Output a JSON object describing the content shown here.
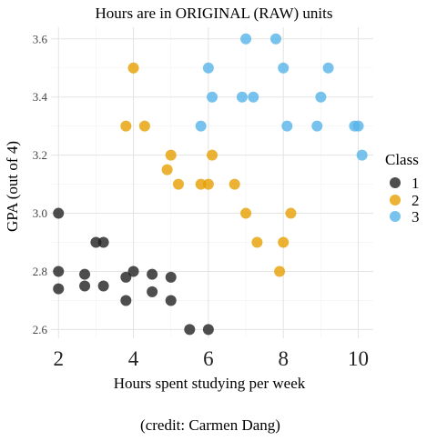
{
  "chart_data": {
    "type": "scatter",
    "title": "Hours are in ORIGINAL (RAW) units",
    "xlabel": "Hours spent studying per week",
    "ylabel": "GPA (out of 4)",
    "caption": "(credit: Carmen Dang)",
    "xlim": [
      1.8,
      10.4
    ],
    "ylim": [
      2.57,
      3.64
    ],
    "x_ticks": [
      2,
      4,
      6,
      8,
      10
    ],
    "y_ticks": [
      2.6,
      2.8,
      3.0,
      3.2,
      3.4,
      3.6
    ],
    "x_tick_labels": [
      "2",
      "4",
      "6",
      "8",
      "10"
    ],
    "y_tick_labels": [
      "2.6",
      "2.8",
      "3.0",
      "3.2",
      "3.4",
      "3.6"
    ],
    "grid": true,
    "legend": {
      "title": "Class",
      "placement": "right",
      "entries": [
        "1",
        "2",
        "3"
      ]
    },
    "series": [
      {
        "name": "1",
        "color": "#222222",
        "points": [
          {
            "x": 2.0,
            "y": 3.0
          },
          {
            "x": 2.0,
            "y": 2.8
          },
          {
            "x": 2.0,
            "y": 2.74
          },
          {
            "x": 2.7,
            "y": 2.79
          },
          {
            "x": 2.7,
            "y": 2.75
          },
          {
            "x": 3.0,
            "y": 2.9
          },
          {
            "x": 3.2,
            "y": 2.9
          },
          {
            "x": 3.2,
            "y": 2.75
          },
          {
            "x": 3.8,
            "y": 2.78
          },
          {
            "x": 3.8,
            "y": 2.7
          },
          {
            "x": 4.0,
            "y": 2.8
          },
          {
            "x": 4.5,
            "y": 2.79
          },
          {
            "x": 4.5,
            "y": 2.73
          },
          {
            "x": 5.0,
            "y": 2.78
          },
          {
            "x": 5.0,
            "y": 2.7
          },
          {
            "x": 5.5,
            "y": 2.6
          },
          {
            "x": 6.0,
            "y": 2.6
          }
        ]
      },
      {
        "name": "2",
        "color": "#E69F00",
        "points": [
          {
            "x": 4.0,
            "y": 3.5
          },
          {
            "x": 3.8,
            "y": 3.3
          },
          {
            "x": 4.3,
            "y": 3.3
          },
          {
            "x": 4.9,
            "y": 3.15
          },
          {
            "x": 5.0,
            "y": 3.2
          },
          {
            "x": 5.2,
            "y": 3.1
          },
          {
            "x": 5.8,
            "y": 3.1
          },
          {
            "x": 6.0,
            "y": 3.1
          },
          {
            "x": 6.1,
            "y": 3.2
          },
          {
            "x": 6.7,
            "y": 3.1
          },
          {
            "x": 7.0,
            "y": 3.0
          },
          {
            "x": 7.3,
            "y": 2.9
          },
          {
            "x": 7.9,
            "y": 2.8
          },
          {
            "x": 8.0,
            "y": 2.9
          },
          {
            "x": 8.2,
            "y": 3.0
          }
        ]
      },
      {
        "name": "3",
        "color": "#56B4E9",
        "points": [
          {
            "x": 7.0,
            "y": 3.6
          },
          {
            "x": 7.8,
            "y": 3.6
          },
          {
            "x": 6.0,
            "y": 3.5
          },
          {
            "x": 8.0,
            "y": 3.5
          },
          {
            "x": 9.2,
            "y": 3.5
          },
          {
            "x": 6.1,
            "y": 3.4
          },
          {
            "x": 6.9,
            "y": 3.4
          },
          {
            "x": 7.2,
            "y": 3.4
          },
          {
            "x": 9.0,
            "y": 3.4
          },
          {
            "x": 5.8,
            "y": 3.3
          },
          {
            "x": 8.1,
            "y": 3.3
          },
          {
            "x": 8.9,
            "y": 3.3
          },
          {
            "x": 9.9,
            "y": 3.3
          },
          {
            "x": 10.0,
            "y": 3.3
          },
          {
            "x": 10.1,
            "y": 3.2
          }
        ]
      }
    ]
  }
}
